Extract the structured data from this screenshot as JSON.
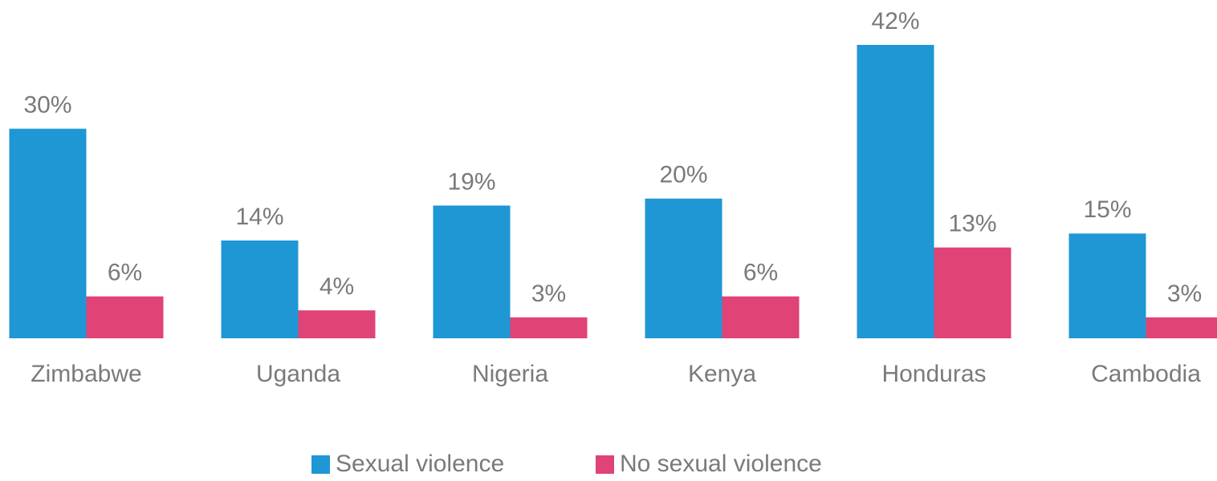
{
  "chart_data": {
    "type": "bar",
    "categories": [
      "Zimbabwe",
      "Uganda",
      "Nigeria",
      "Kenya",
      "Honduras",
      "Cambodia"
    ],
    "series": [
      {
        "name": "Sexual violence",
        "color": "#1f97d4",
        "values": [
          30,
          14,
          19,
          20,
          42,
          15
        ],
        "value_labels": [
          "30%",
          "14%",
          "19%",
          "20%",
          "42%",
          "15%"
        ]
      },
      {
        "name": "No sexual violence",
        "color": "#e04376",
        "values": [
          6,
          4,
          3,
          6,
          13,
          3
        ],
        "value_labels": [
          "6%",
          "4%",
          "3%",
          "6%",
          "13%",
          "3%"
        ]
      }
    ],
    "legend": "bottom"
  }
}
